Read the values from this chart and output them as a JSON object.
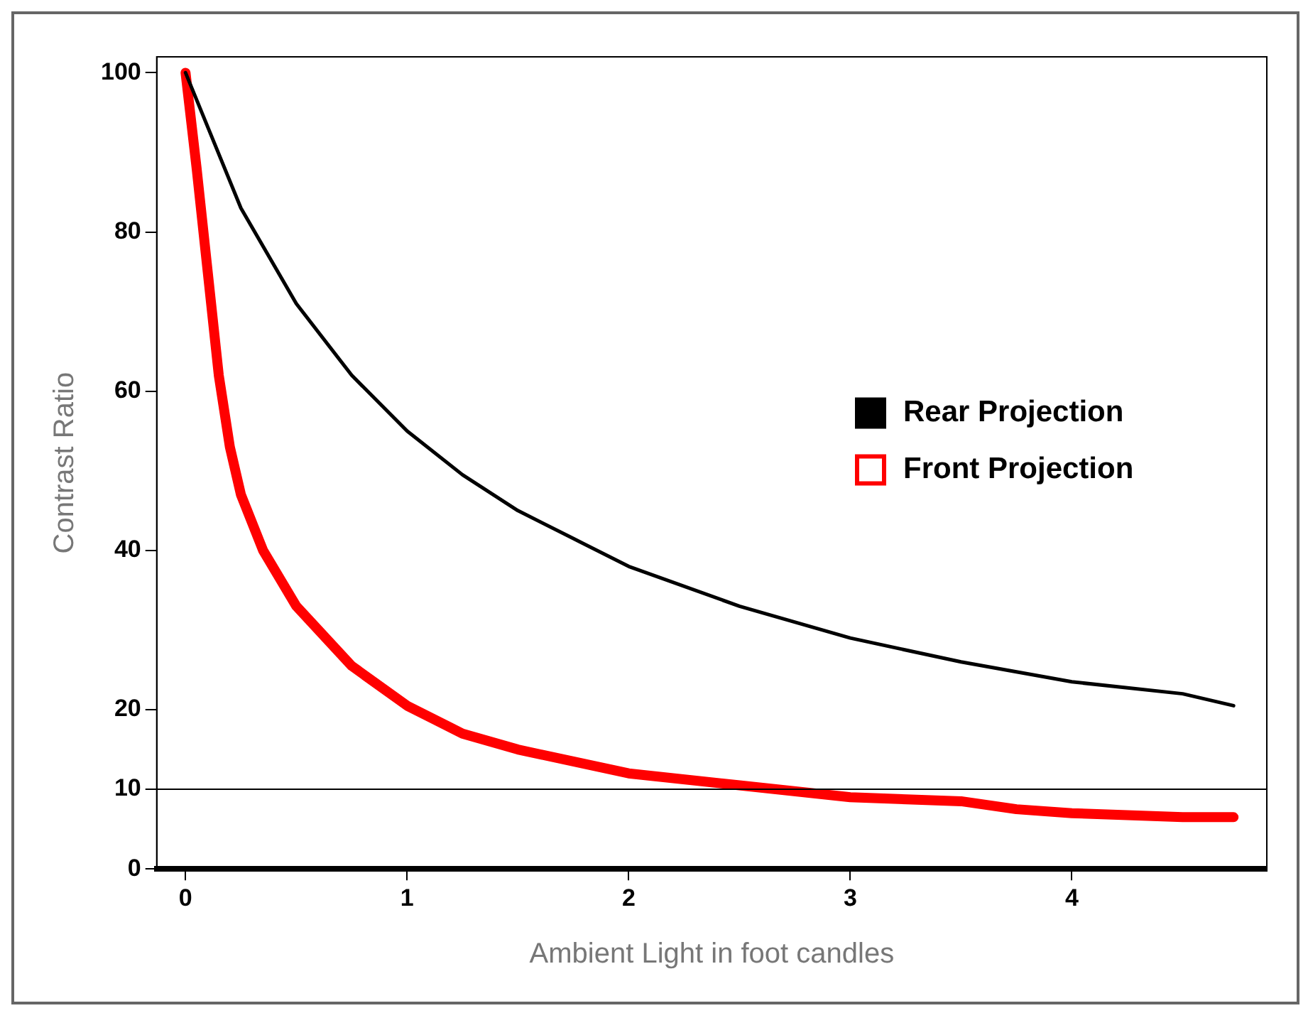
{
  "chart_data": {
    "type": "line",
    "xlabel": "Ambient Light in foot candles",
    "ylabel": "Contrast Ratio",
    "xlim": [
      -0.13,
      4.88
    ],
    "xticks": [
      0,
      1,
      2,
      3,
      4
    ],
    "ylim": [
      0,
      102
    ],
    "yticks": [
      0,
      10,
      20,
      40,
      60,
      80,
      100
    ],
    "series": [
      {
        "name": "Rear Projection",
        "color": "#000000",
        "x": [
          0,
          0.25,
          0.5,
          0.75,
          1,
          1.25,
          1.5,
          1.75,
          2,
          2.5,
          3,
          3.5,
          4,
          4.5,
          4.73
        ],
        "values": [
          100,
          83,
          71,
          62,
          55,
          49.5,
          45,
          41.5,
          38,
          33,
          29,
          26,
          23.5,
          22,
          20.5
        ]
      },
      {
        "name": "Front Projection",
        "color": "#ff0000",
        "x": [
          0,
          0.05,
          0.1,
          0.15,
          0.2,
          0.25,
          0.35,
          0.5,
          0.75,
          1,
          1.25,
          1.5,
          2,
          2.5,
          3,
          3.5,
          3.75,
          4,
          4.5,
          4.73
        ],
        "values": [
          100,
          88,
          75,
          62,
          53,
          47,
          40,
          33,
          25.5,
          20.5,
          17,
          15,
          12,
          10.5,
          9,
          8.5,
          7.5,
          7,
          6.5,
          6.5
        ]
      }
    ],
    "ref_lines": [
      {
        "axis": "y",
        "value": 10,
        "color": "#000000"
      }
    ],
    "legend": "right",
    "grid": false,
    "marker": "none",
    "line_style": "solid"
  }
}
